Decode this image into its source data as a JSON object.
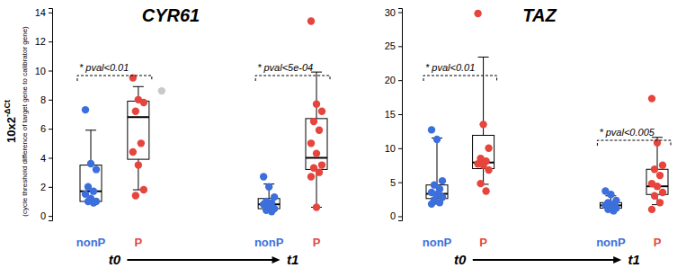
{
  "chart_data": [
    {
      "type": "box",
      "title": "CYR61",
      "ylabel": "10x2",
      "ylabel_sup": "-ΔCt",
      "ylabel_note": "(cycle threshold difference of target gene to calibrator gene)",
      "categories": [
        "nonP",
        "P",
        "nonP",
        "P"
      ],
      "colors": [
        "#3d6fdc",
        "#e5453d",
        "#3d6fdc",
        "#e5453d"
      ],
      "time_labels": [
        "t0",
        "t1"
      ],
      "annotations": [
        "* pval<0.01",
        "* pval<5e-04"
      ],
      "ylim": [
        -0.3,
        14.3
      ],
      "yticks": [
        0,
        2,
        4,
        6,
        8,
        10,
        12,
        14
      ],
      "outlier_color": "#c9c9c9",
      "boxes": [
        {
          "whisker_low": 0.9,
          "q1": 1.0,
          "median": 1.7,
          "q3": 3.5,
          "whisker_high": 5.9,
          "points": [
            7.3,
            3.6,
            3.2,
            2.0,
            1.7,
            1.5,
            1.2,
            1.0,
            1.0,
            0.9
          ]
        },
        {
          "whisker_low": 1.8,
          "q1": 3.9,
          "median": 6.8,
          "q3": 7.9,
          "whisker_high": 8.9,
          "points": [
            9.5,
            8.0,
            7.8,
            7.2,
            5.0,
            4.4,
            3.5,
            1.8,
            1.4
          ],
          "outliers": [
            8.6
          ]
        },
        {
          "whisker_low": 0.3,
          "q1": 0.5,
          "median": 0.8,
          "q3": 1.2,
          "whisker_high": 2.2,
          "points": [
            2.7,
            2.0,
            1.3,
            1.0,
            0.9,
            0.8,
            0.7,
            0.5,
            0.4,
            0.3
          ]
        },
        {
          "whisker_low": 0.6,
          "q1": 3.2,
          "median": 4.0,
          "q3": 6.7,
          "whisker_high": 9.9,
          "points": [
            13.4,
            7.7,
            7.2,
            6.5,
            5.9,
            5.0,
            4.3,
            3.5,
            3.3,
            3.0,
            2.7,
            0.6
          ]
        }
      ]
    },
    {
      "type": "box",
      "title": "TAZ",
      "categories": [
        "nonP",
        "P",
        "nonP",
        "P"
      ],
      "colors": [
        "#3d6fdc",
        "#e5453d",
        "#3d6fdc",
        "#e5453d"
      ],
      "time_labels": [
        "t0",
        "t1"
      ],
      "annotations": [
        "* pval<0.01",
        "* pval<0.005"
      ],
      "ylim": [
        -0.6,
        30.6
      ],
      "yticks": [
        0,
        5,
        10,
        15,
        20,
        25,
        30
      ],
      "boxes": [
        {
          "whisker_low": 1.8,
          "q1": 2.6,
          "median": 3.3,
          "q3": 4.6,
          "whisker_high": 11.5,
          "points": [
            12.7,
            11.3,
            5.2,
            4.6,
            4.0,
            3.5,
            3.2,
            2.8,
            2.4,
            2.0,
            1.8
          ]
        },
        {
          "whisker_low": 4.7,
          "q1": 7.0,
          "median": 7.9,
          "q3": 11.9,
          "whisker_high": 23.4,
          "points": [
            29.8,
            13.5,
            10.0,
            8.5,
            8.1,
            7.7,
            7.5,
            6.8,
            4.8,
            3.7
          ]
        },
        {
          "whisker_low": 0.8,
          "q1": 1.2,
          "median": 1.6,
          "q3": 2.0,
          "whisker_high": 3.0,
          "points": [
            3.7,
            3.2,
            2.3,
            2.0,
            1.8,
            1.6,
            1.4,
            1.2,
            1.0,
            0.8
          ]
        },
        {
          "whisker_low": 1.7,
          "q1": 3.2,
          "median": 4.4,
          "q3": 6.9,
          "whisker_high": 11.6,
          "points": [
            17.3,
            10.8,
            7.5,
            6.9,
            6.0,
            4.8,
            4.4,
            3.5,
            3.0,
            2.0,
            1.0
          ]
        }
      ]
    }
  ]
}
